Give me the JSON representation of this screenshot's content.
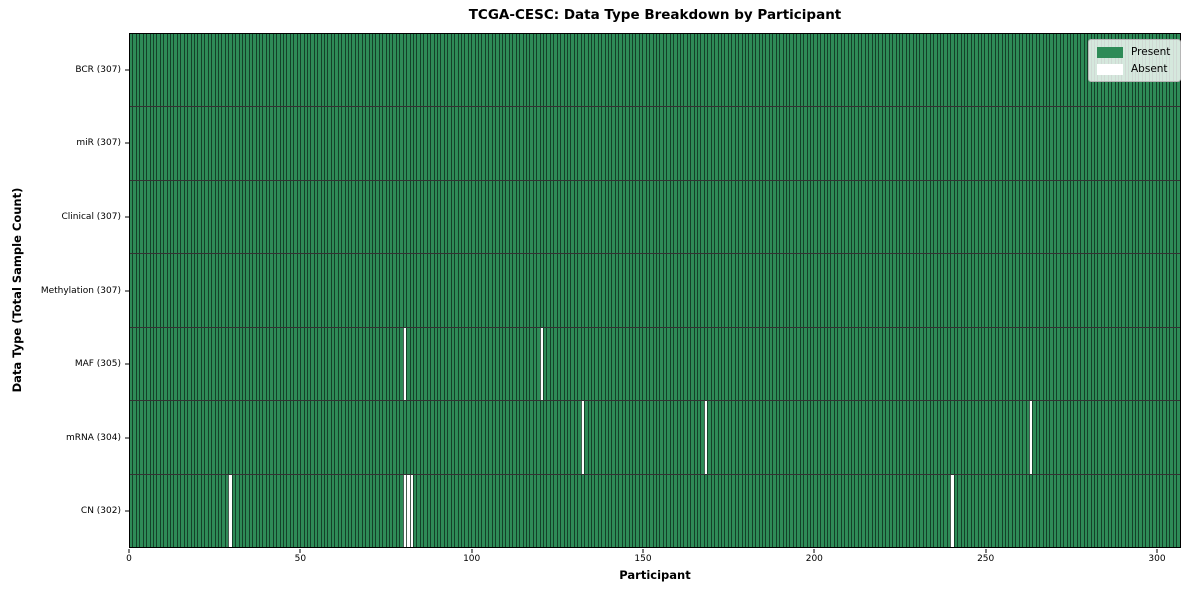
{
  "chart_data": {
    "type": "heatmap",
    "title": "TCGA-CESC: Data Type Breakdown by Participant",
    "xlabel": "Participant",
    "ylabel": "Data Type (Total Sample Count)",
    "n_participants": 307,
    "xlim": [
      0,
      307
    ],
    "x_ticks": [
      0,
      50,
      100,
      150,
      200,
      250,
      300
    ],
    "grid": false,
    "legend_position": "upper right",
    "legend_entries": [
      {
        "label": "Present",
        "color": "#2e8b57"
      },
      {
        "label": "Absent",
        "color": "#ffffff"
      }
    ],
    "rows": [
      {
        "label": "BCR (307)",
        "data_type": "BCR",
        "total_samples": 307,
        "absent_participants": []
      },
      {
        "label": "miR (307)",
        "data_type": "miR",
        "total_samples": 307,
        "absent_participants": []
      },
      {
        "label": "Clinical (307)",
        "data_type": "Clinical",
        "total_samples": 307,
        "absent_participants": []
      },
      {
        "label": "Methylation (307)",
        "data_type": "Methylation",
        "total_samples": 307,
        "absent_participants": []
      },
      {
        "label": "MAF (305)",
        "data_type": "MAF",
        "total_samples": 305,
        "absent_participants": [
          80,
          120
        ]
      },
      {
        "label": "mRNA (304)",
        "data_type": "mRNA",
        "total_samples": 304,
        "absent_participants": [
          132,
          168,
          263
        ]
      },
      {
        "label": "CN (302)",
        "data_type": "CN",
        "total_samples": 302,
        "absent_participants": [
          29,
          80,
          81,
          82,
          240
        ]
      }
    ],
    "colors": {
      "present": "#2e8b57",
      "absent": "#ffffff",
      "cell_edge": "rgba(12,40,26,0.75)",
      "row_separator": "rgba(0,0,0,0.8)",
      "frame": "#000000",
      "legend_bg": "rgba(255,255,255,0.8)",
      "legend_border": "#b5b5b5"
    }
  }
}
